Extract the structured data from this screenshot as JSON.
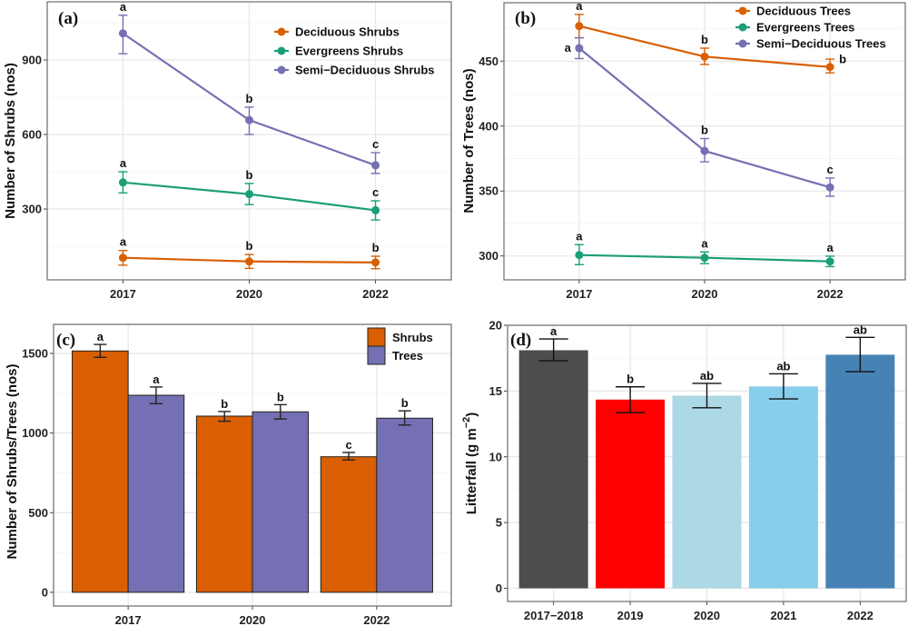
{
  "chart_data": [
    {
      "panel_label": "(a)",
      "type": "line",
      "ylabel": "Number of Shrubs (nos)",
      "xlabel": "",
      "categories": [
        "2017",
        "2020",
        "2022"
      ],
      "yticks": [
        300,
        600,
        900
      ],
      "ylim": [
        15,
        1134
      ],
      "grid": true,
      "legend_position": "top-right",
      "series": [
        {
          "name": "Deciduous Shrubs",
          "color": "#d95f02",
          "values": [
            104,
            89,
            85
          ],
          "err_low": [
            74,
            61,
            60
          ],
          "err_high": [
            133,
            117,
            110
          ],
          "letters": [
            "a",
            "b",
            "b"
          ],
          "letter_side": [
            "top",
            "top",
            "top"
          ]
        },
        {
          "name": "Evergreens Shrubs",
          "color": "#1b9e77",
          "values": [
            407,
            360,
            295
          ],
          "err_low": [
            365,
            318,
            256
          ],
          "err_high": [
            450,
            403,
            333
          ],
          "letters": [
            "a",
            "b",
            "c"
          ],
          "letter_side": [
            "top",
            "top",
            "top"
          ]
        },
        {
          "name": "Semi−Deciduous Shrubs",
          "color": "#7570b3",
          "values": [
            1007,
            658,
            476
          ],
          "err_low": [
            925,
            600,
            443
          ],
          "err_high": [
            1080,
            710,
            527
          ],
          "letters": [
            "a",
            "b",
            "c"
          ],
          "letter_side": [
            "top",
            "top",
            "top"
          ]
        }
      ]
    },
    {
      "panel_label": "(b)",
      "type": "line",
      "ylabel": "Number of Trees (nos)",
      "xlabel": "",
      "categories": [
        "2017",
        "2020",
        "2022"
      ],
      "yticks": [
        300,
        350,
        400,
        450
      ],
      "ylim": [
        281.6,
        495
      ],
      "grid": true,
      "legend_position": "top-right",
      "series": [
        {
          "name": "Deciduous Trees",
          "color": "#d95f02",
          "values": [
            477,
            453.5,
            445.5
          ],
          "err_low": [
            468,
            447.5,
            441
          ],
          "err_high": [
            486,
            460,
            451.6
          ],
          "letters": [
            "a",
            "b",
            "b"
          ],
          "letter_side": [
            "top",
            "top",
            "right"
          ]
        },
        {
          "name": "Evergreens Trees",
          "color": "#1b9e77",
          "values": [
            300.7,
            298.6,
            295.8
          ],
          "err_low": [
            293.3,
            294.1,
            291.8
          ],
          "err_high": [
            308.7,
            303.1,
            299.8
          ],
          "letters": [
            "a",
            "a",
            "a"
          ],
          "letter_side": [
            "top",
            "top",
            "top"
          ]
        },
        {
          "name": "Semi−Deciduous Trees",
          "color": "#7570b3",
          "values": [
            460,
            380.9,
            352.8
          ],
          "err_low": [
            452,
            372.5,
            346
          ],
          "err_high": [
            468,
            390.4,
            360
          ],
          "letters": [
            "a",
            "b",
            "c"
          ],
          "letter_side": [
            "left",
            "top",
            "top"
          ]
        }
      ]
    },
    {
      "panel_label": "(c)",
      "type": "bar",
      "ylabel": "Number of Shrubs/Trees (nos)",
      "xlabel": "",
      "categories": [
        "2017",
        "2020",
        "2022"
      ],
      "yticks": [
        0,
        500,
        1000,
        1500
      ],
      "ylim": [
        -86,
        1682
      ],
      "grid": true,
      "legend_position": "top-right",
      "series": [
        {
          "name": "Shrubs",
          "color": "#d95f02",
          "values": [
            1515,
            1106,
            851
          ],
          "err_low": [
            1475,
            1074,
            831
          ],
          "err_high": [
            1556,
            1135,
            878
          ],
          "letters": [
            "a",
            "b",
            "c"
          ]
        },
        {
          "name": "Trees",
          "color": "#7570b3",
          "values": [
            1237,
            1133,
            1093
          ],
          "err_low": [
            1184,
            1088,
            1050
          ],
          "err_high": [
            1289,
            1178,
            1139
          ],
          "letters": [
            "a",
            "b",
            "b"
          ]
        }
      ]
    },
    {
      "panel_label": "(d)",
      "type": "bar",
      "ylabel": "Litterfall (g m",
      "ylabel_sup": "−2",
      "ylabel_close": ")",
      "xlabel": "",
      "categories": [
        "2017−2018",
        "2019",
        "2020",
        "2021",
        "2022"
      ],
      "yticks": [
        0,
        5,
        10,
        15,
        20
      ],
      "ylim": [
        -1,
        20
      ],
      "grid": true,
      "values": [
        18.1,
        14.35,
        14.65,
        15.35,
        17.76
      ],
      "err_low": [
        17.3,
        13.36,
        13.73,
        14.4,
        16.47
      ],
      "err_high": [
        18.96,
        15.32,
        15.58,
        16.31,
        19.08
      ],
      "letters": [
        "a",
        "b",
        "ab",
        "ab",
        "ab"
      ],
      "colors": [
        "#4d4d4d",
        "#ff0000",
        "#add8e6",
        "#87ceeb",
        "#4682b4"
      ]
    }
  ]
}
